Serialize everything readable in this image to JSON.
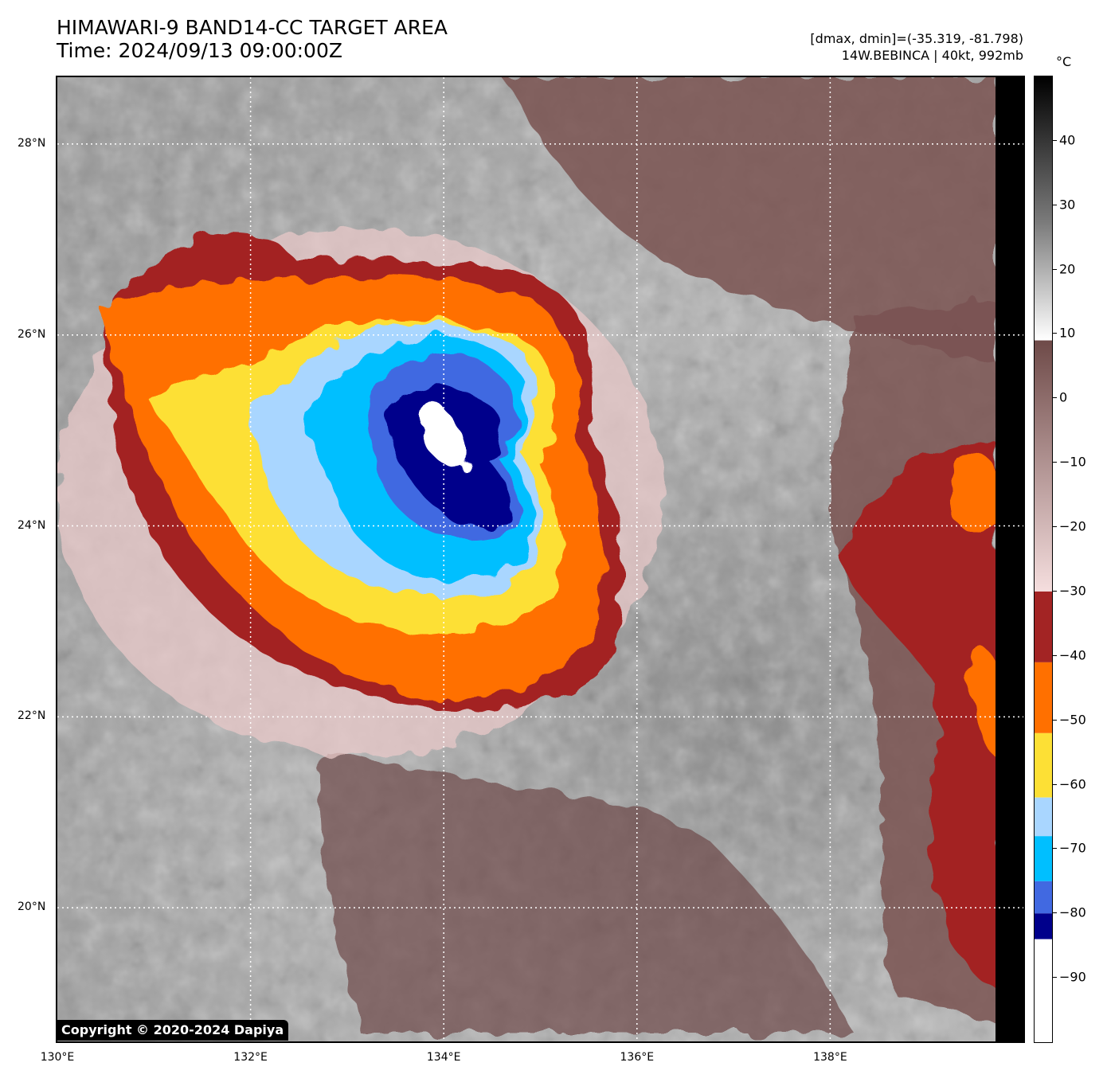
{
  "header": {
    "title_line1": "HIMAWARI-9 BAND14-CC TARGET AREA",
    "title_line2": "Time: 2024/09/13 09:00:00Z",
    "info_line1": "[dmax, dmin]=(-35.319, -81.798)",
    "info_line2": "14W.BEBINCA | 40kt, 992mb"
  },
  "map": {
    "lat_labels": [
      "28°N",
      "26°N",
      "24°N",
      "22°N",
      "20°N"
    ],
    "lon_labels": [
      "130°E",
      "132°E",
      "134°E",
      "136°E",
      "138°E"
    ],
    "lat_values": [
      28,
      26,
      24,
      22,
      20
    ],
    "lon_values": [
      130,
      132,
      134,
      136,
      138
    ],
    "lat_range": [
      18.6,
      28.7
    ],
    "lon_range": [
      130.0,
      140.0
    ],
    "gridlines": true,
    "copyright": "Copyright © 2020-2024 Dapiya"
  },
  "colorbar": {
    "unit": "°C",
    "ticks": [
      "40",
      "30",
      "20",
      "10",
      "0",
      "−10",
      "−20",
      "−30",
      "−40",
      "−50",
      "−60",
      "−70",
      "−80",
      "−90"
    ],
    "tick_values": [
      40,
      30,
      20,
      10,
      0,
      -10,
      -20,
      -30,
      -40,
      -50,
      -60,
      -70,
      -80,
      -90
    ],
    "range": [
      -100,
      50
    ],
    "bands": [
      {
        "from": 9,
        "to": 50,
        "type": "gray"
      },
      {
        "from": -30,
        "to": 9,
        "type": "brown"
      },
      {
        "from": -41,
        "to": -30,
        "color": "#a32424"
      },
      {
        "from": -52,
        "to": -41,
        "color": "#ff7000"
      },
      {
        "from": -62,
        "to": -52,
        "color": "#fde035"
      },
      {
        "from": -68,
        "to": -62,
        "color": "#a9d6ff"
      },
      {
        "from": -75,
        "to": -68,
        "color": "#00bfff"
      },
      {
        "from": -80,
        "to": -75,
        "color": "#4169e1"
      },
      {
        "from": -84,
        "to": -80,
        "color": "#00008b"
      },
      {
        "from": -100,
        "to": -84,
        "color": "#ffffff"
      }
    ]
  },
  "colors": {
    "cold_brown_top": "#f5dede",
    "cold_brown_bottom": "#6e4a48",
    "red": "#a32424",
    "orange": "#ff7000",
    "yellow": "#fde035",
    "light_blue": "#a9d6ff",
    "cyan": "#00bfff",
    "royal_blue": "#4169e1",
    "navy": "#00008b",
    "white": "#ffffff"
  }
}
